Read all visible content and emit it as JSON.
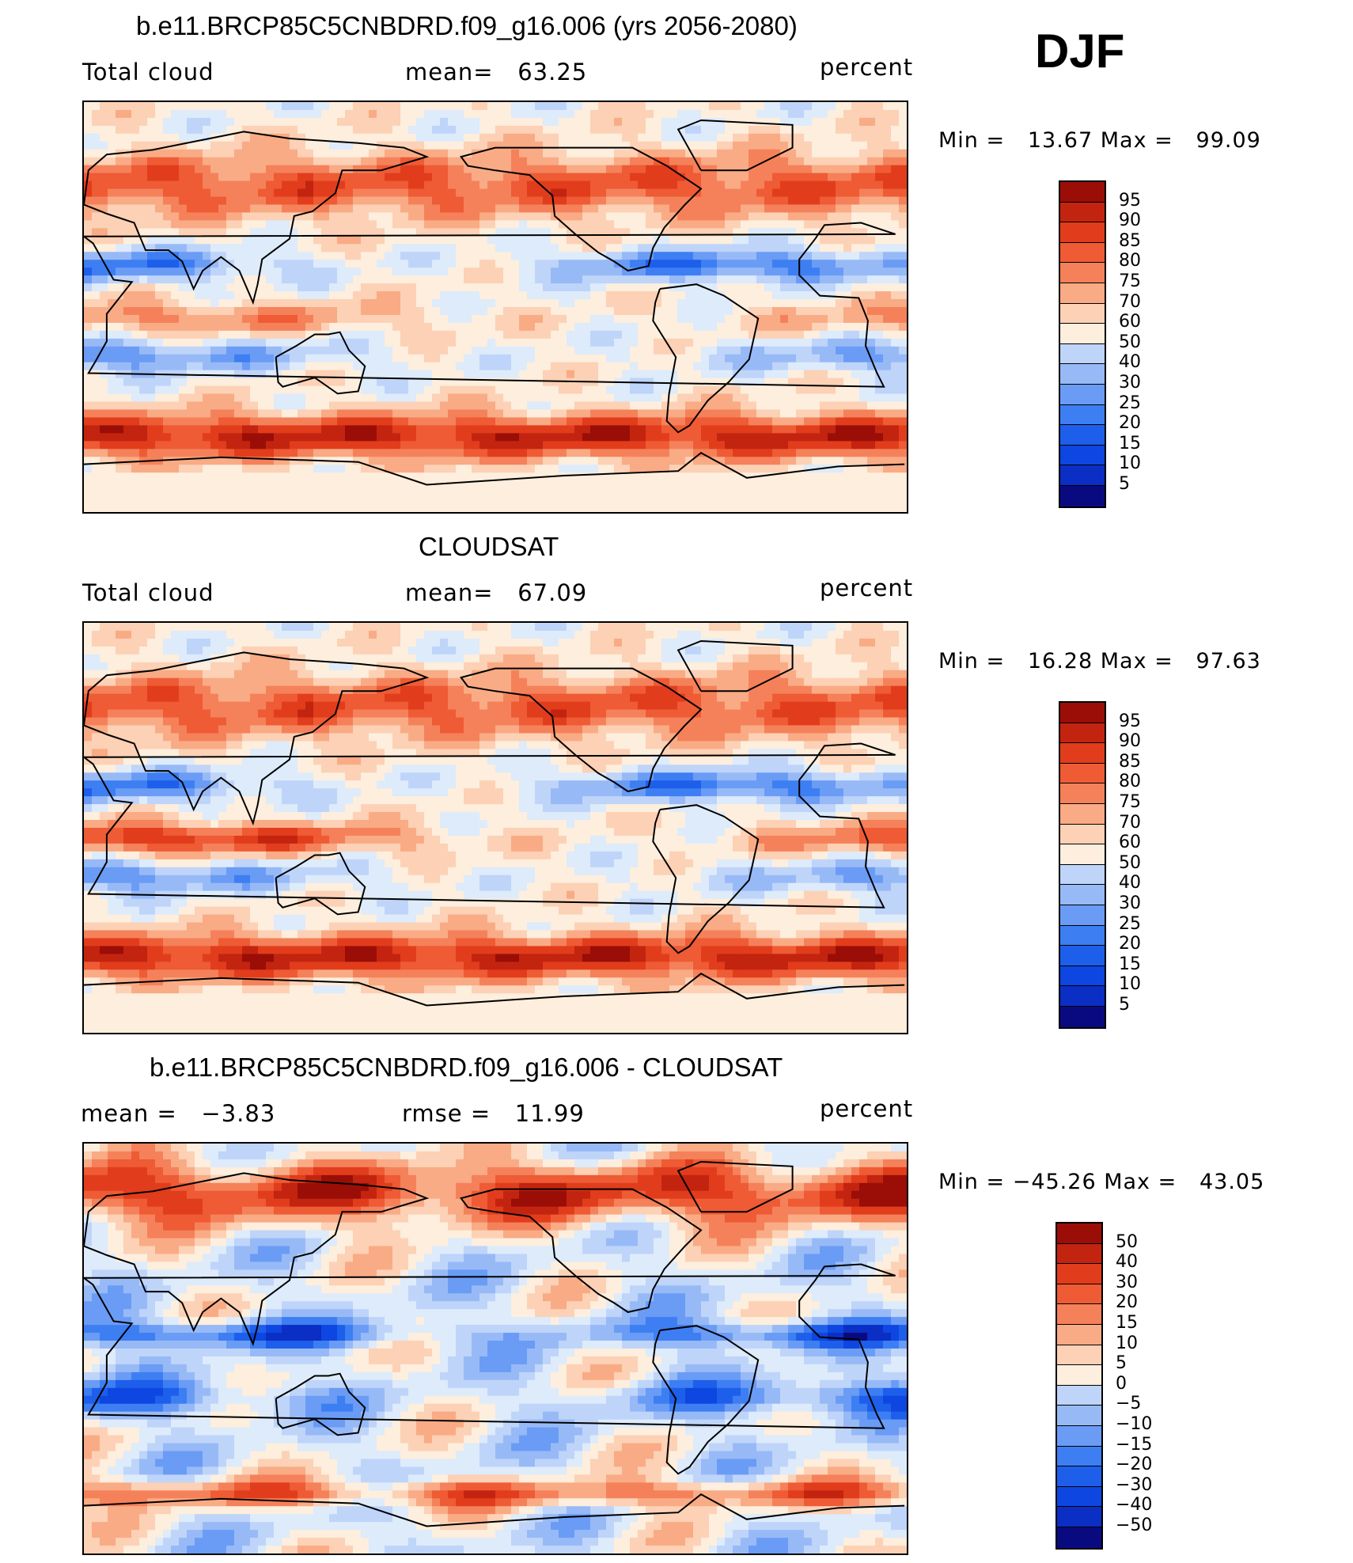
{
  "season": "DJF",
  "colors": {
    "diverging": [
      "#0a0a80",
      "#0b2ec4",
      "#0d46e0",
      "#1d5fea",
      "#3d7ef2",
      "#6a9cf5",
      "#97baf7",
      "#bfd4f9",
      "#ddebfb",
      "#fdeedd",
      "#fcd1b5",
      "#f9ab85",
      "#f5815a",
      "#ee5b35",
      "#e13d1c",
      "#c32410",
      "#9a0e07"
    ],
    "coast": "#000000"
  },
  "chart_data": [
    {
      "type": "heatmap",
      "title": "b.e11.BRCP85C5CNBDRD.f09_g16.006 (yrs 2056-2080)",
      "left_label": "Total cloud",
      "center_label": "mean=   63.25",
      "units": "percent",
      "minmax_text": "Min =   13.67 Max =   99.09",
      "variable": "Total cloud",
      "mean": 63.25,
      "min": 13.67,
      "max": 99.09,
      "colorbar_labels": [
        "95",
        "90",
        "85",
        "80",
        "75",
        "70",
        "60",
        "50",
        "40",
        "30",
        "25",
        "20",
        "15",
        "10",
        "5"
      ]
    },
    {
      "type": "heatmap",
      "title": "CLOUDSAT",
      "left_label": "Total cloud",
      "center_label": "mean=   67.09",
      "units": "percent",
      "minmax_text": "Min =   16.28 Max =   97.63",
      "variable": "Total cloud",
      "mean": 67.09,
      "min": 16.28,
      "max": 97.63,
      "colorbar_labels": [
        "95",
        "90",
        "85",
        "80",
        "75",
        "70",
        "60",
        "50",
        "40",
        "30",
        "25",
        "20",
        "15",
        "10",
        "5"
      ]
    },
    {
      "type": "heatmap",
      "title": "b.e11.BRCP85C5CNBDRD.f09_g16.006 - CLOUDSAT",
      "left_label": "mean =   −3.83",
      "center_label": "rmse =   11.99",
      "units": "percent",
      "minmax_text": "Min = −45.26 Max =   43.05",
      "mean": -3.83,
      "rmse": 11.99,
      "min": -45.26,
      "max": 43.05,
      "colorbar_labels": [
        "50",
        "40",
        "30",
        "20",
        "15",
        "10",
        "5",
        "0",
        "−5",
        "−10",
        "−15",
        "−20",
        "−30",
        "−40",
        "−50"
      ]
    }
  ]
}
